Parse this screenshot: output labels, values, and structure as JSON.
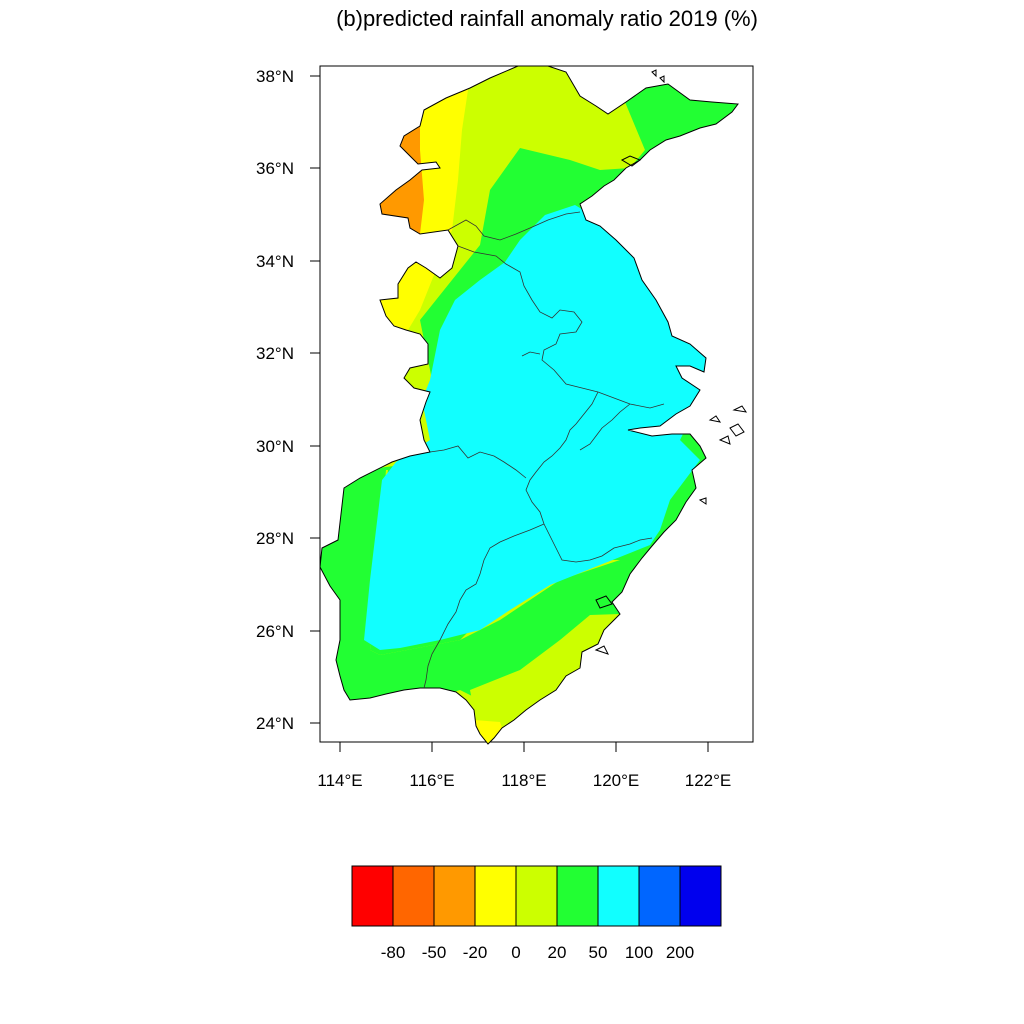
{
  "title": "(b)predicted rainfall anomaly ratio 2019 (%)",
  "map": {
    "lat_ticks": [
      "38°N",
      "36°N",
      "34°N",
      "32°N",
      "30°N",
      "28°N",
      "26°N",
      "24°N"
    ],
    "lon_ticks": [
      "114°E",
      "116°E",
      "118°E",
      "120°E",
      "122°E"
    ],
    "lon_range": [
      113.55,
      122.95
    ],
    "lat_range": [
      23.55,
      38.25
    ]
  },
  "colorbar": {
    "colors": [
      "#ff0000",
      "#ff6600",
      "#ff9900",
      "#ffff00",
      "#ccff00",
      "#22ff33",
      "#11ffff",
      "#0066ff",
      "#0000ee"
    ],
    "labels": [
      "-80",
      "-50",
      "-20",
      "0",
      "20",
      "50",
      "100",
      "200"
    ]
  },
  "colors": {
    "land_outline": "#000000",
    "province_border": "#333333"
  }
}
